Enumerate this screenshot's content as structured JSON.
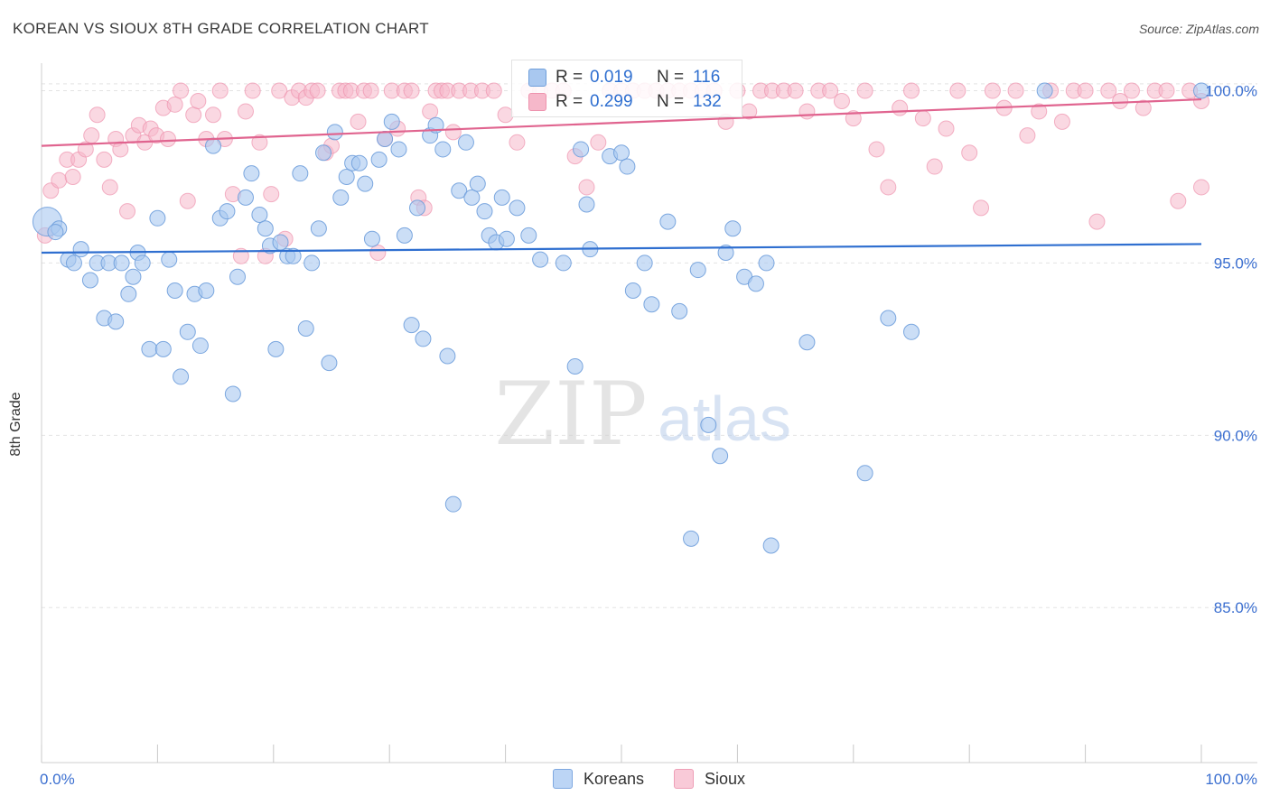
{
  "title": "KOREAN VS SIOUX 8TH GRADE CORRELATION CHART",
  "source": "Source: ZipAtlas.com",
  "legend": {
    "r_label": "R =",
    "n_label": "N =",
    "korean": {
      "r": "0.019",
      "n": "116"
    },
    "sioux": {
      "r": "0.299",
      "n": "132"
    }
  },
  "bottom_legend": [
    "Koreans",
    "Sioux"
  ],
  "colors": {
    "korean_fill": "#a9c8f0",
    "korean_stroke": "#6f9fdb",
    "korean_line": "#2f6fd0",
    "sioux_fill": "#f6b8ca",
    "sioux_stroke": "#ee93ae",
    "sioux_line": "#e0648f",
    "axis_text": "#3b6fd0",
    "grid": "#e3e3e3"
  },
  "chart_data": {
    "type": "scatter",
    "title": "KOREAN VS SIOUX 8TH GRADE CORRELATION CHART",
    "xlabel": "",
    "ylabel": "8th Grade",
    "xlim": [
      0,
      100
    ],
    "ylim": [
      80.5,
      100.8
    ],
    "x_tick_labels": [
      "0.0%",
      "100.0%"
    ],
    "y_ticks": [
      85,
      90,
      95,
      100
    ],
    "y_tick_labels": [
      "85.0%",
      "90.0%",
      "95.0%",
      "100.0%"
    ],
    "grid": "horizontal dashed",
    "watermark": {
      "zip": "ZIP",
      "atlas": "atlas"
    },
    "series": [
      {
        "name": "Koreans",
        "trend": [
          [
            0,
            95.3
          ],
          [
            100,
            95.55
          ]
        ],
        "points": [
          [
            0.5,
            96.2
          ],
          [
            1.5,
            96.0
          ],
          [
            1.2,
            95.9
          ],
          [
            2.3,
            95.1
          ],
          [
            2.8,
            95.0
          ],
          [
            3.4,
            95.4
          ],
          [
            4.2,
            94.5
          ],
          [
            4.8,
            95.0
          ],
          [
            5.4,
            93.4
          ],
          [
            5.8,
            95.0
          ],
          [
            6.4,
            93.3
          ],
          [
            6.9,
            95.0
          ],
          [
            7.5,
            94.1
          ],
          [
            7.9,
            94.6
          ],
          [
            8.3,
            95.3
          ],
          [
            8.7,
            95.0
          ],
          [
            9.3,
            92.5
          ],
          [
            10.0,
            96.3
          ],
          [
            10.5,
            92.5
          ],
          [
            11.0,
            95.1
          ],
          [
            11.5,
            94.2
          ],
          [
            12.0,
            91.7
          ],
          [
            12.6,
            93.0
          ],
          [
            13.2,
            94.1
          ],
          [
            13.7,
            92.6
          ],
          [
            14.2,
            94.2
          ],
          [
            14.8,
            98.4
          ],
          [
            15.4,
            96.3
          ],
          [
            16.0,
            96.5
          ],
          [
            16.5,
            91.2
          ],
          [
            16.9,
            94.6
          ],
          [
            17.6,
            96.9
          ],
          [
            18.1,
            97.6
          ],
          [
            18.8,
            96.4
          ],
          [
            19.3,
            96.0
          ],
          [
            19.7,
            95.5
          ],
          [
            20.2,
            92.5
          ],
          [
            20.6,
            95.6
          ],
          [
            21.2,
            95.2
          ],
          [
            21.7,
            95.2
          ],
          [
            22.3,
            97.6
          ],
          [
            22.8,
            93.1
          ],
          [
            23.3,
            95.0
          ],
          [
            23.9,
            96.0
          ],
          [
            24.3,
            98.2
          ],
          [
            24.8,
            92.1
          ],
          [
            25.3,
            98.8
          ],
          [
            25.8,
            96.9
          ],
          [
            26.3,
            97.5
          ],
          [
            26.8,
            97.9
          ],
          [
            27.4,
            97.9
          ],
          [
            27.9,
            97.3
          ],
          [
            28.5,
            95.7
          ],
          [
            29.1,
            98.0
          ],
          [
            29.6,
            98.6
          ],
          [
            30.2,
            99.1
          ],
          [
            30.8,
            98.3
          ],
          [
            31.3,
            95.8
          ],
          [
            31.9,
            93.2
          ],
          [
            32.4,
            96.6
          ],
          [
            32.9,
            92.8
          ],
          [
            33.5,
            98.7
          ],
          [
            34.0,
            99.0
          ],
          [
            34.6,
            98.3
          ],
          [
            35.0,
            92.3
          ],
          [
            35.5,
            88.0
          ],
          [
            36.0,
            97.1
          ],
          [
            36.6,
            98.5
          ],
          [
            37.1,
            96.9
          ],
          [
            37.6,
            97.3
          ],
          [
            38.2,
            96.5
          ],
          [
            38.6,
            95.8
          ],
          [
            39.2,
            95.6
          ],
          [
            39.7,
            96.9
          ],
          [
            40.1,
            95.7
          ],
          [
            41.0,
            96.6
          ],
          [
            42.0,
            95.8
          ],
          [
            43.0,
            95.1
          ],
          [
            45.0,
            95.0
          ],
          [
            46.0,
            92.0
          ],
          [
            46.5,
            98.3
          ],
          [
            47.0,
            96.7
          ],
          [
            47.3,
            95.4
          ],
          [
            49.0,
            98.1
          ],
          [
            50.0,
            98.2
          ],
          [
            50.5,
            97.8
          ],
          [
            51.0,
            94.2
          ],
          [
            52.0,
            95.0
          ],
          [
            52.6,
            93.8
          ],
          [
            54.0,
            96.2
          ],
          [
            55.0,
            93.6
          ],
          [
            56.0,
            87.0
          ],
          [
            56.6,
            94.8
          ],
          [
            57.5,
            90.3
          ],
          [
            58.5,
            89.4
          ],
          [
            59.0,
            95.3
          ],
          [
            59.6,
            96.0
          ],
          [
            60.6,
            94.6
          ],
          [
            61.6,
            94.4
          ],
          [
            62.5,
            95.0
          ],
          [
            62.9,
            86.8
          ],
          [
            66.0,
            92.7
          ],
          [
            71.0,
            88.9
          ],
          [
            73.0,
            93.4
          ],
          [
            75.0,
            93.0
          ],
          [
            100.0,
            100.0
          ],
          [
            86.5,
            100.0
          ]
        ]
      },
      {
        "name": "Sioux",
        "trend": [
          [
            0,
            98.4
          ],
          [
            100,
            99.75
          ]
        ],
        "points": [
          [
            0.3,
            95.8
          ],
          [
            0.8,
            97.1
          ],
          [
            1.5,
            97.4
          ],
          [
            2.2,
            98.0
          ],
          [
            2.7,
            97.5
          ],
          [
            3.2,
            98.0
          ],
          [
            3.8,
            98.3
          ],
          [
            4.3,
            98.7
          ],
          [
            4.8,
            99.3
          ],
          [
            5.4,
            98.0
          ],
          [
            5.9,
            97.2
          ],
          [
            6.4,
            98.6
          ],
          [
            6.8,
            98.3
          ],
          [
            7.4,
            96.5
          ],
          [
            7.9,
            98.7
          ],
          [
            8.4,
            99.0
          ],
          [
            8.9,
            98.5
          ],
          [
            9.4,
            98.9
          ],
          [
            9.9,
            98.7
          ],
          [
            10.5,
            99.5
          ],
          [
            10.9,
            98.6
          ],
          [
            11.5,
            99.6
          ],
          [
            12.0,
            100.0
          ],
          [
            12.6,
            96.8
          ],
          [
            13.1,
            99.3
          ],
          [
            13.5,
            99.7
          ],
          [
            14.2,
            98.6
          ],
          [
            14.8,
            99.3
          ],
          [
            15.4,
            100.0
          ],
          [
            15.8,
            98.6
          ],
          [
            16.5,
            97.0
          ],
          [
            17.2,
            95.2
          ],
          [
            17.6,
            99.4
          ],
          [
            18.2,
            100.0
          ],
          [
            18.8,
            98.5
          ],
          [
            19.3,
            95.2
          ],
          [
            19.8,
            97.0
          ],
          [
            20.5,
            100.0
          ],
          [
            21.0,
            95.7
          ],
          [
            21.6,
            99.8
          ],
          [
            22.2,
            100.0
          ],
          [
            22.8,
            99.8
          ],
          [
            23.3,
            100.0
          ],
          [
            23.8,
            100.0
          ],
          [
            24.5,
            98.2
          ],
          [
            25.0,
            98.4
          ],
          [
            25.7,
            100.0
          ],
          [
            26.2,
            100.0
          ],
          [
            26.7,
            100.0
          ],
          [
            27.3,
            99.1
          ],
          [
            27.8,
            100.0
          ],
          [
            28.4,
            100.0
          ],
          [
            29.0,
            95.3
          ],
          [
            29.6,
            98.6
          ],
          [
            30.2,
            100.0
          ],
          [
            30.7,
            98.9
          ],
          [
            31.3,
            100.0
          ],
          [
            31.9,
            100.0
          ],
          [
            32.5,
            96.9
          ],
          [
            33.0,
            96.6
          ],
          [
            33.5,
            99.4
          ],
          [
            34.0,
            100.0
          ],
          [
            34.5,
            100.0
          ],
          [
            35.0,
            100.0
          ],
          [
            35.5,
            98.8
          ],
          [
            36.0,
            100.0
          ],
          [
            37.0,
            100.0
          ],
          [
            38.0,
            100.0
          ],
          [
            39.0,
            100.0
          ],
          [
            40.0,
            99.3
          ],
          [
            41.0,
            98.5
          ],
          [
            42.0,
            100.0
          ],
          [
            43.0,
            100.0
          ],
          [
            44.0,
            100.0
          ],
          [
            45.0,
            100.0
          ],
          [
            46.0,
            98.1
          ],
          [
            47.0,
            97.2
          ],
          [
            48.0,
            98.5
          ],
          [
            49.0,
            100.0
          ],
          [
            50.0,
            100.0
          ],
          [
            51.0,
            100.0
          ],
          [
            52.0,
            100.0
          ],
          [
            53.0,
            100.0
          ],
          [
            54.0,
            100.0
          ],
          [
            55.0,
            100.0
          ],
          [
            56.0,
            100.0
          ],
          [
            57.0,
            100.0
          ],
          [
            58.0,
            100.0
          ],
          [
            59.0,
            99.1
          ],
          [
            60.0,
            100.0
          ],
          [
            61.0,
            99.4
          ],
          [
            62.0,
            100.0
          ],
          [
            63.0,
            100.0
          ],
          [
            64.0,
            100.0
          ],
          [
            65.0,
            100.0
          ],
          [
            66.0,
            99.4
          ],
          [
            67.0,
            100.0
          ],
          [
            68.0,
            100.0
          ],
          [
            69.0,
            99.7
          ],
          [
            70.0,
            99.2
          ],
          [
            71.0,
            100.0
          ],
          [
            72.0,
            98.3
          ],
          [
            73.0,
            97.2
          ],
          [
            74.0,
            99.5
          ],
          [
            75.0,
            100.0
          ],
          [
            76.0,
            99.2
          ],
          [
            77.0,
            97.8
          ],
          [
            78.0,
            98.9
          ],
          [
            79.0,
            100.0
          ],
          [
            80.0,
            98.2
          ],
          [
            81.0,
            96.6
          ],
          [
            82.0,
            100.0
          ],
          [
            83.0,
            99.5
          ],
          [
            84.0,
            100.0
          ],
          [
            85.0,
            98.7
          ],
          [
            86.0,
            99.4
          ],
          [
            87.0,
            100.0
          ],
          [
            88.0,
            99.1
          ],
          [
            89.0,
            100.0
          ],
          [
            90.0,
            100.0
          ],
          [
            91.0,
            96.2
          ],
          [
            92.0,
            100.0
          ],
          [
            93.0,
            99.7
          ],
          [
            94.0,
            100.0
          ],
          [
            95.0,
            99.5
          ],
          [
            96.0,
            100.0
          ],
          [
            97.0,
            100.0
          ],
          [
            98.0,
            96.8
          ],
          [
            99.0,
            100.0
          ],
          [
            100.0,
            97.2
          ],
          [
            100.0,
            99.7
          ]
        ]
      }
    ]
  }
}
